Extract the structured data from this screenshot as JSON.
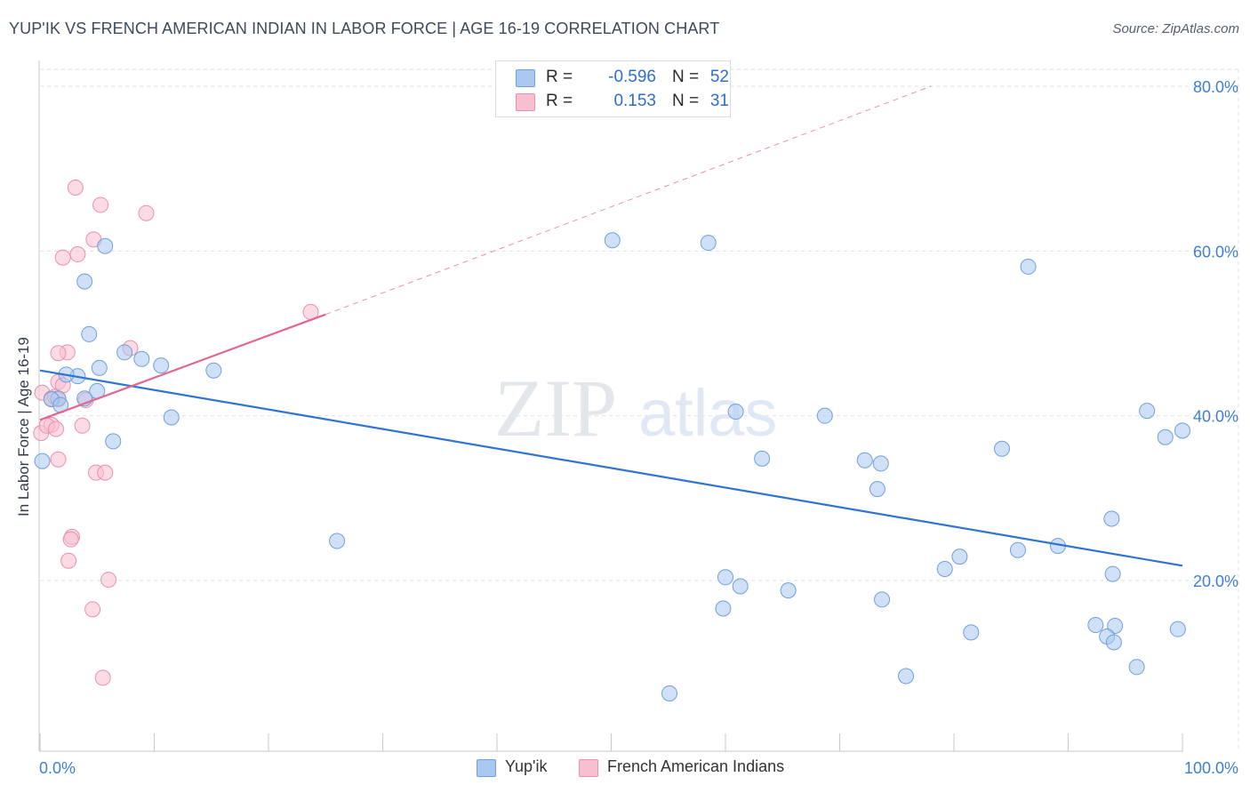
{
  "title": "YUP'IK VS FRENCH AMERICAN INDIAN IN LABOR FORCE | AGE 16-19 CORRELATION CHART",
  "source": "Source: ZipAtlas.com",
  "watermark": {
    "zip": "ZIP",
    "atlas": "atlas"
  },
  "stats": [
    {
      "r_label": "R =",
      "r_value": "-0.596",
      "n_label": "N =",
      "n_value": "52"
    },
    {
      "r_label": "R =",
      "r_value": "0.153",
      "n_label": "N =",
      "n_value": "31"
    }
  ],
  "legend": [
    "Yup'ik",
    "French American Indians"
  ],
  "colors": {
    "blue_fill": "#a9c8f0",
    "blue_stroke": "#6f9fdc",
    "blue_line": "#2f74d0",
    "pink_fill": "#f7bfcf",
    "pink_stroke": "#ec8fab",
    "pink_line": "#e2668f",
    "axis_text": "#3f7fd0",
    "grid": "#dde1e6"
  },
  "chart_data": {
    "type": "scatter",
    "title": "YUP'IK VS FRENCH AMERICAN INDIAN IN LABOR FORCE | AGE 16-19 CORRELATION CHART",
    "xlabel": "",
    "ylabel": "In Labor Force | Age 16-19",
    "xlim": [
      0,
      100
    ],
    "ylim": [
      0,
      80
    ],
    "x_tick_labels": [
      "0.0%",
      "100.0%"
    ],
    "y_ticks": [
      20,
      40,
      60,
      80
    ],
    "y_tick_labels": [
      "20.0%",
      "40.0%",
      "60.0%",
      "80.0%"
    ],
    "series": [
      {
        "name": "Yup'ik",
        "r": -0.596,
        "n": 52,
        "trend": {
          "x": [
            0,
            100
          ],
          "y": [
            45.5,
            21.8
          ]
        },
        "points": [
          [
            0.2,
            34.5
          ],
          [
            5.7,
            60.6
          ],
          [
            3.9,
            56.3
          ],
          [
            4.3,
            49.9
          ],
          [
            7.4,
            47.7
          ],
          [
            8.9,
            46.9
          ],
          [
            10.6,
            46.1
          ],
          [
            5.2,
            45.8
          ],
          [
            15.2,
            45.5
          ],
          [
            3.3,
            44.8
          ],
          [
            2.3,
            45.0
          ],
          [
            5.0,
            43.0
          ],
          [
            1.6,
            42.1
          ],
          [
            3.9,
            42.1
          ],
          [
            1.0,
            42.0
          ],
          [
            1.8,
            41.3
          ],
          [
            11.5,
            39.8
          ],
          [
            6.4,
            36.9
          ],
          [
            26.0,
            24.8
          ],
          [
            50.1,
            61.3
          ],
          [
            58.5,
            61.0
          ],
          [
            86.5,
            58.1
          ],
          [
            60.9,
            40.5
          ],
          [
            68.7,
            40.0
          ],
          [
            63.2,
            34.8
          ],
          [
            72.2,
            34.6
          ],
          [
            73.6,
            34.2
          ],
          [
            73.3,
            31.1
          ],
          [
            84.2,
            36.0
          ],
          [
            96.9,
            40.6
          ],
          [
            98.5,
            37.4
          ],
          [
            100.0,
            38.2
          ],
          [
            93.8,
            27.5
          ],
          [
            89.1,
            24.2
          ],
          [
            85.6,
            23.7
          ],
          [
            80.5,
            22.9
          ],
          [
            79.2,
            21.4
          ],
          [
            60.0,
            20.4
          ],
          [
            61.3,
            19.3
          ],
          [
            65.5,
            18.8
          ],
          [
            73.7,
            17.7
          ],
          [
            59.8,
            16.6
          ],
          [
            93.9,
            20.8
          ],
          [
            81.5,
            13.7
          ],
          [
            75.8,
            8.4
          ],
          [
            55.1,
            6.3
          ],
          [
            92.4,
            14.6
          ],
          [
            94.1,
            14.5
          ],
          [
            93.4,
            13.2
          ],
          [
            94.0,
            12.5
          ],
          [
            96.0,
            9.5
          ],
          [
            99.6,
            14.1
          ]
        ]
      },
      {
        "name": "French American Indians",
        "r": 0.153,
        "n": 31,
        "trend_solid": {
          "x": [
            0,
            25
          ],
          "y": [
            39.5,
            52.3
          ]
        },
        "trend_dashed": {
          "x": [
            25,
            78
          ],
          "y": [
            52.3,
            80.0
          ]
        },
        "points": [
          [
            0.1,
            37.9
          ],
          [
            3.1,
            67.7
          ],
          [
            5.3,
            65.6
          ],
          [
            9.3,
            64.6
          ],
          [
            4.7,
            61.4
          ],
          [
            3.3,
            59.6
          ],
          [
            2.0,
            59.2
          ],
          [
            23.7,
            52.6
          ],
          [
            7.9,
            48.2
          ],
          [
            2.4,
            47.7
          ],
          [
            1.6,
            47.6
          ],
          [
            1.6,
            44.1
          ],
          [
            2.0,
            43.7
          ],
          [
            0.2,
            42.8
          ],
          [
            1.0,
            42.1
          ],
          [
            1.3,
            42.3
          ],
          [
            1.6,
            42.0
          ],
          [
            4.0,
            41.9
          ],
          [
            1.0,
            38.9
          ],
          [
            0.6,
            38.8
          ],
          [
            1.4,
            38.4
          ],
          [
            3.7,
            38.8
          ],
          [
            1.6,
            34.7
          ],
          [
            4.9,
            33.1
          ],
          [
            5.7,
            33.1
          ],
          [
            2.8,
            25.3
          ],
          [
            2.7,
            25.0
          ],
          [
            2.5,
            22.4
          ],
          [
            6.0,
            20.1
          ],
          [
            4.6,
            16.5
          ],
          [
            5.5,
            8.2
          ]
        ]
      }
    ]
  }
}
